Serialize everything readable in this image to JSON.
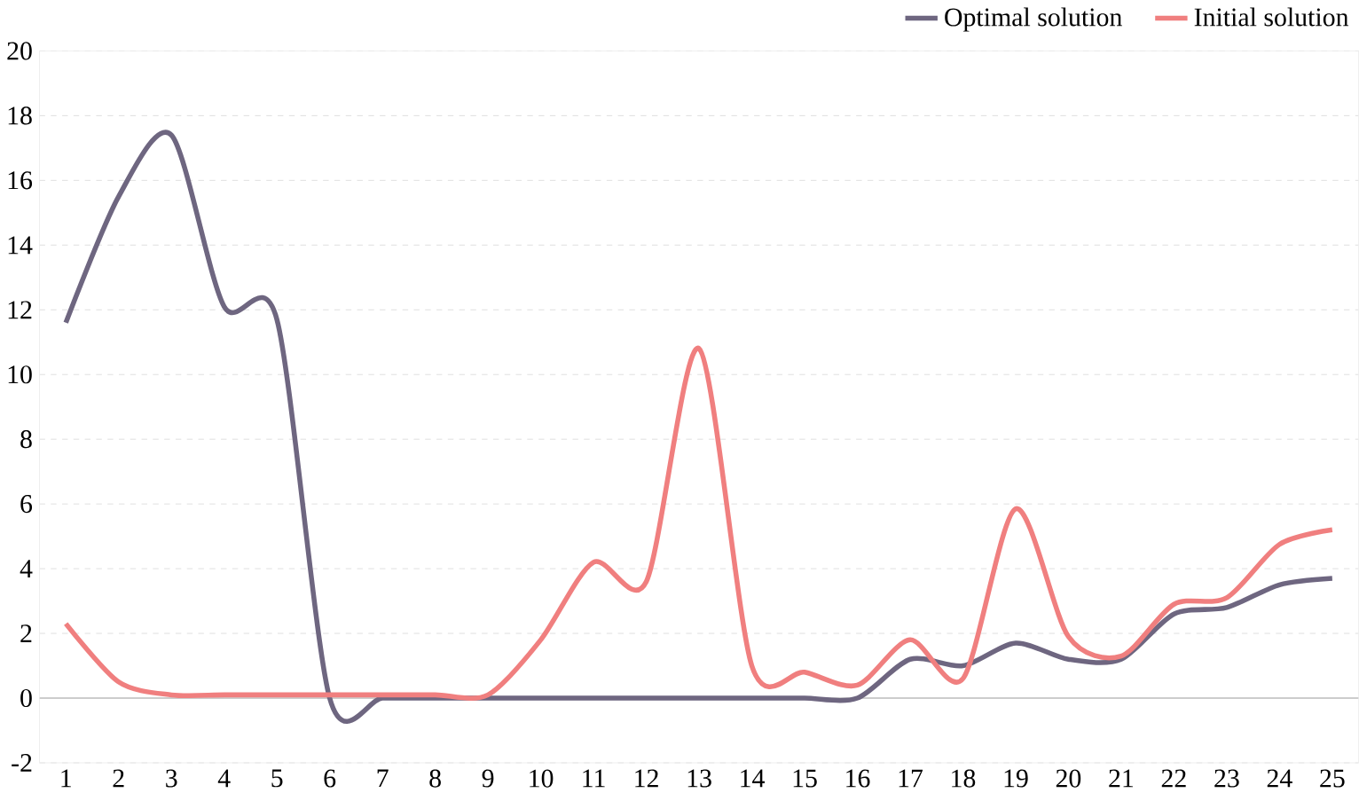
{
  "chart_data": {
    "type": "line",
    "categories": [
      "1",
      "2",
      "3",
      "4",
      "5",
      "6",
      "7",
      "8",
      "9",
      "10",
      "11",
      "12",
      "13",
      "14",
      "15",
      "16",
      "17",
      "18",
      "19",
      "20",
      "21",
      "22",
      "23",
      "24",
      "25"
    ],
    "series": [
      {
        "name": "Optimal solution",
        "color": "#6e6680",
        "values": [
          11.6,
          15.5,
          17.4,
          12.1,
          11.7,
          0,
          0,
          0,
          0,
          0,
          0,
          0,
          0,
          0,
          0,
          0,
          1.2,
          1.0,
          1.7,
          1.2,
          1.2,
          2.6,
          2.8,
          3.5,
          3.7
        ]
      },
      {
        "name": "Initial solution",
        "color": "#f07f7f",
        "values": [
          2.3,
          0.5,
          0.1,
          0.1,
          0.1,
          0.1,
          0.1,
          0.1,
          0.1,
          1.8,
          4.2,
          3.6,
          10.8,
          1.0,
          0.8,
          0.4,
          1.8,
          0.6,
          5.85,
          1.9,
          1.3,
          2.9,
          3.1,
          4.75,
          5.2
        ]
      }
    ],
    "ylim": [
      -2,
      20
    ],
    "yticks": [
      -2,
      0,
      2,
      4,
      6,
      8,
      10,
      12,
      14,
      16,
      18,
      20
    ],
    "grid": "y",
    "legend": "top right",
    "marker": "none",
    "line_style": "solid"
  }
}
